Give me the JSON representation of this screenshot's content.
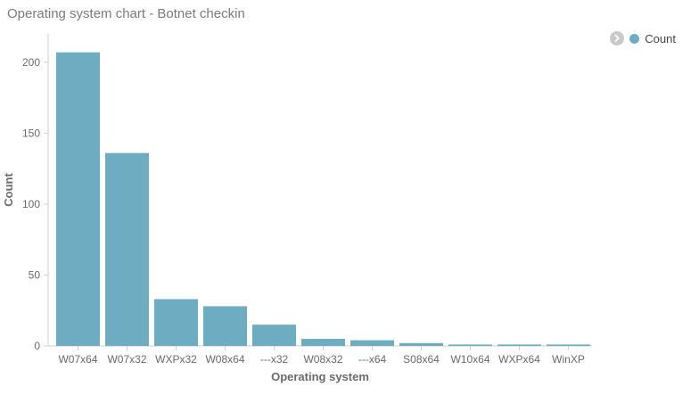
{
  "chart_data": {
    "type": "bar",
    "title": "Operating system chart - Botnet checkin",
    "xlabel": "Operating system",
    "ylabel": "Count",
    "categories": [
      "W07x64",
      "W07x32",
      "WXPx32",
      "W08x64",
      "---x32",
      "W08x32",
      "---x64",
      "S08x64",
      "W10x64",
      "WXPx64",
      "WinXP"
    ],
    "series": [
      {
        "name": "Count",
        "values": [
          207,
          136,
          33,
          28,
          15,
          5,
          4,
          2,
          1,
          1,
          1
        ],
        "color": "#6eadc1"
      }
    ],
    "ylim": [
      0,
      220
    ],
    "yticks": [
      0,
      50,
      100,
      150,
      200
    ],
    "grid": false,
    "legend_position": "top-right"
  },
  "legend": {
    "toggle_icon": "chevron-right-icon",
    "label": "Count"
  }
}
